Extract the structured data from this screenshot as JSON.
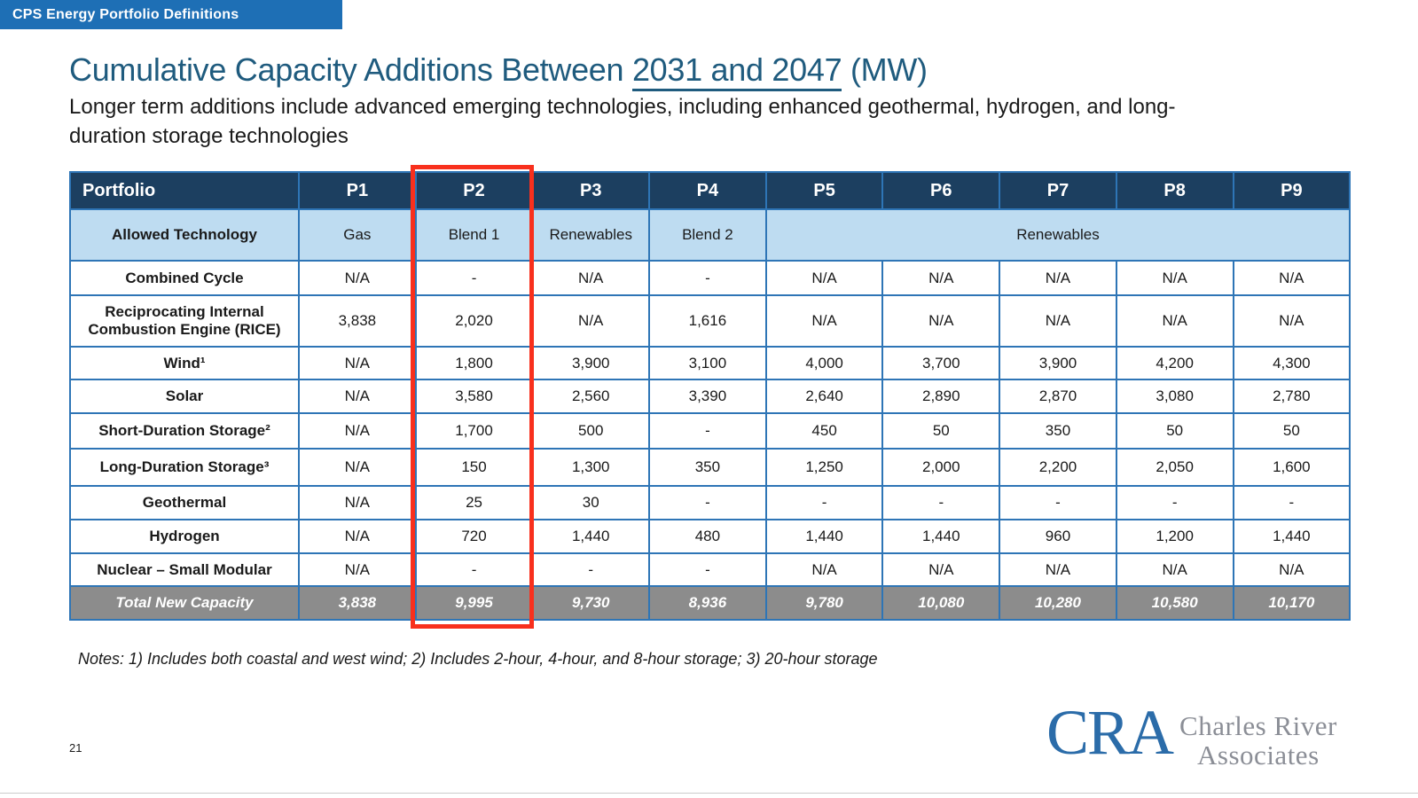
{
  "banner": {
    "label": "CPS Energy Portfolio Definitions"
  },
  "title": {
    "prefix": "Cumulative Capacity Additions Between ",
    "underlined": "2031 and 2047",
    "suffix": " (MW)"
  },
  "subtitle": {
    "line1": "Longer term additions include advanced emerging technologies, including enhanced geothermal, hydrogen, and long-",
    "line2": "duration storage technologies"
  },
  "table": {
    "header": [
      "Portfolio",
      "P1",
      "P2",
      "P3",
      "P4",
      "P5",
      "P6",
      "P7",
      "P8",
      "P9"
    ],
    "allowed_technology": {
      "label": "Allowed Technology",
      "values": [
        "Gas",
        "Blend 1",
        "Renewables",
        "Blend 2"
      ],
      "merged": {
        "label": "Renewables",
        "span": 5
      }
    },
    "rows": [
      {
        "label": "Combined Cycle",
        "values": [
          "N/A",
          "-",
          "N/A",
          "-",
          "N/A",
          "N/A",
          "N/A",
          "N/A",
          "N/A"
        ]
      },
      {
        "label": "Reciprocating Internal Combustion Engine (RICE)",
        "values": [
          "3,838",
          "2,020",
          "N/A",
          "1,616",
          "N/A",
          "N/A",
          "N/A",
          "N/A",
          "N/A"
        ]
      },
      {
        "label": "Wind¹",
        "values": [
          "N/A",
          "1,800",
          "3,900",
          "3,100",
          "4,000",
          "3,700",
          "3,900",
          "4,200",
          "4,300"
        ]
      },
      {
        "label": "Solar",
        "values": [
          "N/A",
          "3,580",
          "2,560",
          "3,390",
          "2,640",
          "2,890",
          "2,870",
          "3,080",
          "2,780"
        ]
      },
      {
        "label": "Short-Duration Storage²",
        "values": [
          "N/A",
          "1,700",
          "500",
          "-",
          "450",
          "50",
          "350",
          "50",
          "50"
        ]
      },
      {
        "label": "Long-Duration Storage³",
        "values": [
          "N/A",
          "150",
          "1,300",
          "350",
          "1,250",
          "2,000",
          "2,200",
          "2,050",
          "1,600"
        ]
      },
      {
        "label": "Geothermal",
        "values": [
          "N/A",
          "25",
          "30",
          "-",
          "-",
          "-",
          "-",
          "-",
          "-"
        ]
      },
      {
        "label": "Hydrogen",
        "values": [
          "N/A",
          "720",
          "1,440",
          "480",
          "1,440",
          "1,440",
          "960",
          "1,200",
          "1,440"
        ]
      },
      {
        "label": "Nuclear – Small Modular",
        "values": [
          "N/A",
          "-",
          "-",
          "-",
          "N/A",
          "N/A",
          "N/A",
          "N/A",
          "N/A"
        ]
      }
    ],
    "total": {
      "label": "Total New Capacity",
      "values": [
        "3,838",
        "9,995",
        "9,730",
        "8,936",
        "9,780",
        "10,080",
        "10,280",
        "10,580",
        "10,170"
      ]
    }
  },
  "highlight": {
    "column": "P2",
    "color": "#f8301d"
  },
  "notes": "Notes: 1) Includes both coastal and west wind; 2) Includes 2-hour, 4-hour, and 8-hour storage; 3) 20-hour storage",
  "footer": {
    "page_number": "21",
    "logo": {
      "monogram": "CRA",
      "name_line1": "Charles River",
      "name_line2": "Associates"
    }
  },
  "colors": {
    "banner_blue": "#1e6fb5",
    "title_blue": "#1f5b7e",
    "header_navy": "#1c3f60",
    "light_blue_row": "#bedcf1",
    "border_blue": "#2e75b6",
    "total_gray": "#8c8c8c",
    "highlight_red": "#f8301d",
    "logo_blue": "#2b6ca9",
    "logo_gray": "#8b8e96"
  }
}
